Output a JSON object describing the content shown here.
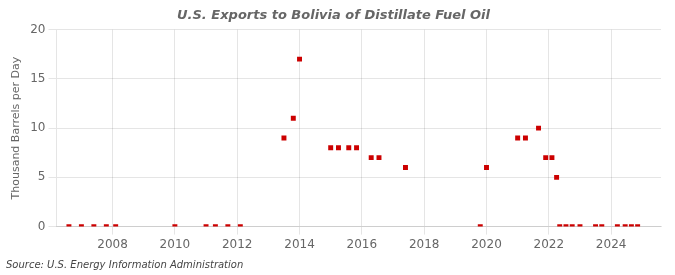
{
  "chart_data": {
    "type": "scatter",
    "title": "U.S. Exports to Bolivia of Distillate Fuel Oil",
    "ylabel": "Thousand Barrels per Day",
    "annotation": "Source: U.S. Energy Information Administration",
    "color": "#cc0000",
    "marker": "square",
    "grid": true,
    "xlim": [
      2006.2,
      2025.6
    ],
    "xticks": [
      2008,
      2010,
      2012,
      2014,
      2016,
      2018,
      2020,
      2022,
      2024
    ],
    "ylim": [
      0,
      20
    ],
    "yticks": [
      0,
      5,
      10,
      15,
      20
    ],
    "x": [
      2006.6,
      2007.0,
      2007.4,
      2007.8,
      2008.1,
      2010.0,
      2011.0,
      2011.3,
      2011.7,
      2012.1,
      2013.5,
      2013.8,
      2014.0,
      2015.0,
      2015.25,
      2015.58,
      2015.83,
      2016.3,
      2016.55,
      2017.4,
      2019.8,
      2020.0,
      2021.0,
      2021.25,
      2021.67,
      2021.9,
      2022.1,
      2022.25,
      2022.35,
      2022.55,
      2022.75,
      2023.0,
      2023.5,
      2023.7,
      2024.2,
      2024.45,
      2024.65,
      2024.85
    ],
    "values": [
      0,
      0,
      0,
      0,
      0,
      0,
      0,
      0,
      0,
      0,
      9,
      11,
      17,
      8,
      8,
      8,
      8,
      7,
      7,
      6,
      0,
      6,
      9,
      9,
      10,
      7,
      7,
      5,
      0,
      0,
      0,
      0,
      0,
      0,
      0,
      0,
      0,
      0
    ]
  }
}
